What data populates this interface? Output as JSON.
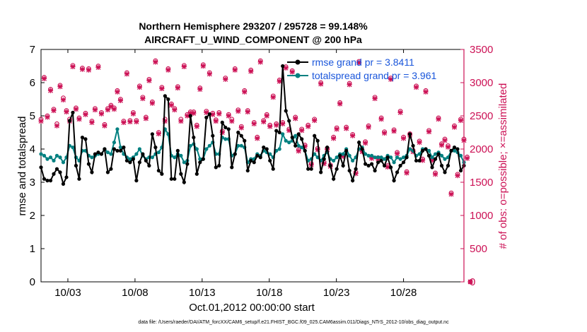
{
  "chart_data": {
    "type": "line",
    "title": "Northern Hemisphere 293207 / 295728 = 99.148%",
    "subtitle": "AIRCRAFT_U_WIND_COMPONENT @ 200 hPa",
    "xlabel": "Oct.01,2012 00:00:00 start",
    "ylabel": "rmse and totalspread",
    "y2label": "# of obs: o=possible; ×=assimilated",
    "footnote": "data file: /Users/raeder/DAI/ATM_forcXX/CAM6_setup/f.e21.FHIST_BGC.f09_025.CAM6assim.011/Diags_NTrS_2012-10/obs_diag_output.nc",
    "xlim": [
      1,
      32.5
    ],
    "xticks": [
      {
        "value": 3,
        "label": "10/03"
      },
      {
        "value": 8,
        "label": "10/08"
      },
      {
        "value": 13,
        "label": "10/13"
      },
      {
        "value": 18,
        "label": "10/18"
      },
      {
        "value": 23,
        "label": "10/23"
      },
      {
        "value": 28,
        "label": "10/28"
      }
    ],
    "ylim": [
      0,
      7
    ],
    "yticks": [
      0,
      1,
      2,
      3,
      4,
      5,
      6,
      7
    ],
    "y2lim": [
      0,
      3500
    ],
    "y2ticks": [
      0,
      500,
      1000,
      1500,
      2000,
      2500,
      3000,
      3500
    ],
    "grid": false,
    "legend_position": "top-right",
    "colors": {
      "rmse": "#000000",
      "spread": "#008080",
      "obs": "#cc1155",
      "legend_text": "#1a56db"
    },
    "series": [
      {
        "name": "rmse grand pr = 3.8411",
        "axis": "left",
        "values": [
          3.45,
          3.1,
          3.05,
          3.05,
          3.25,
          3.4,
          3.3,
          2.95,
          3.15,
          4.85,
          5.1,
          3.5,
          3.1,
          4.35,
          4.3,
          3.55,
          3.3,
          3.85,
          3.9,
          3.85,
          4.0,
          3.3,
          3.4,
          4.0,
          3.95,
          3.95,
          4.05,
          3.65,
          3.6,
          3.7,
          3.05,
          3.6,
          3.85,
          3.65,
          3.5,
          4.45,
          4.05,
          3.35,
          3.25,
          5.6,
          5.5,
          3.1,
          3.1,
          3.95,
          3.25,
          3.0,
          3.55,
          5.0,
          4.35,
          3.25,
          3.6,
          3.7,
          4.95,
          5.05,
          4.4,
          3.45,
          3.5,
          4.8,
          4.65,
          4.6,
          3.45,
          3.85,
          4.5,
          4.4,
          4.25,
          3.35,
          3.65,
          3.6,
          3.8,
          3.75,
          4.05,
          4.0,
          3.65,
          3.4,
          4.55,
          4.5,
          6.5,
          5.15,
          4.85,
          4.35,
          4.1,
          4.45,
          4.3,
          3.95,
          3.4,
          3.4,
          4.4,
          4.25,
          3.3,
          3.7,
          4.05,
          3.5,
          3.1,
          3.4,
          3.8,
          3.5,
          3.95,
          3.35,
          3.05,
          3.4,
          4.2,
          4.0,
          3.55,
          3.5,
          3.55,
          3.35,
          3.6,
          3.65,
          3.5,
          3.75,
          3.45,
          3.05,
          3.3,
          3.5,
          3.6,
          3.75,
          4.45,
          4.1,
          3.65,
          3.65,
          3.95,
          4.0,
          3.8,
          3.45,
          3.7,
          3.85,
          3.5,
          3.3,
          3.5,
          3.95,
          4.05,
          4.0,
          3.35,
          3.5
        ]
      },
      {
        "name": "totalspread grand pr = 3.961",
        "axis": "left",
        "values": [
          3.85,
          3.8,
          3.7,
          3.75,
          3.65,
          3.8,
          3.75,
          3.6,
          3.75,
          4.1,
          4.05,
          3.75,
          3.65,
          3.95,
          3.95,
          3.8,
          3.75,
          3.8,
          3.85,
          3.85,
          4.0,
          3.9,
          3.85,
          4.2,
          4.6,
          4.05,
          3.85,
          3.75,
          3.7,
          3.75,
          3.85,
          4.0,
          3.8,
          3.7,
          3.75,
          3.75,
          3.85,
          3.9,
          4.05,
          4.6,
          4.45,
          3.8,
          3.75,
          3.85,
          3.8,
          3.6,
          3.65,
          4.1,
          4.15,
          4.0,
          3.7,
          3.7,
          4.0,
          4.1,
          4.2,
          3.85,
          3.85,
          4.35,
          4.3,
          4.3,
          3.8,
          3.85,
          4.1,
          4.1,
          4.05,
          3.6,
          3.7,
          3.7,
          3.85,
          3.8,
          3.95,
          3.9,
          3.85,
          3.75,
          3.95,
          4.0,
          4.45,
          4.25,
          4.2,
          4.25,
          4.4,
          4.1,
          4.05,
          3.95,
          3.65,
          3.7,
          3.85,
          3.75,
          3.65,
          3.8,
          3.9,
          3.7,
          3.65,
          3.75,
          3.85,
          3.85,
          4.0,
          3.8,
          3.65,
          3.75,
          4.0,
          4.05,
          3.85,
          3.8,
          3.8,
          3.75,
          3.75,
          3.75,
          3.7,
          3.8,
          3.75,
          3.6,
          3.75,
          3.7,
          3.75,
          3.8,
          4.0,
          3.95,
          3.8,
          3.85,
          4.0,
          4.0,
          3.95,
          3.75,
          3.85,
          3.9,
          3.8,
          3.7,
          3.75,
          3.95,
          3.95,
          3.9,
          3.8,
          3.6
        ]
      },
      {
        "name": "possible",
        "axis": "right",
        "marker": "o",
        "values": [
          2450,
          3080,
          2500,
          2900,
          2600,
          2380,
          2960,
          2770,
          2580,
          2450,
          3260,
          2620,
          2470,
          3220,
          2540,
          3210,
          2420,
          2610,
          3250,
          2550,
          2370,
          2610,
          2660,
          2620,
          2880,
          2750,
          2420,
          3150,
          2430,
          2550,
          2430,
          2950,
          2780,
          2480,
          3050,
          2710,
          3330,
          2250,
          2930,
          2450,
          3210,
          2680,
          2610,
          2940,
          2450,
          3260,
          2520,
          2560,
          2560,
          2360,
          2920,
          3270,
          2570,
          3150,
          2540,
          2440,
          2550,
          2270,
          3070,
          2520,
          2450,
          3210,
          2590,
          2340,
          2880,
          2580,
          3190,
          2400,
          2180,
          3330,
          2430,
          2520,
          2360,
          2800,
          2380,
          3040,
          2400,
          3240,
          2300,
          3180,
          2480,
          1990,
          2300,
          2060,
          2360,
          1780,
          2450,
          2010,
          3000,
          1800,
          2010,
          1760,
          2180,
          2320,
          2700,
          1910,
          2330,
          2990,
          2220,
          1650,
          3320,
          1980,
          2110,
          2350,
          1880,
          2780,
          1870,
          2470,
          2260,
          1750,
          3070,
          2290,
          1950,
          2570,
          2180,
          1660,
          2230,
          1980,
          2950,
          2120,
          1850,
          2880,
          2280,
          1850,
          1640,
          2470,
          2080,
          2150,
          2050,
          1340,
          2350,
          1620,
          2450,
          2150,
          1880,
          0
        ]
      },
      {
        "name": "assimilated",
        "axis": "right",
        "marker": "x",
        "values": [
          2420,
          3060,
          2480,
          2880,
          2580,
          2350,
          2940,
          2740,
          2560,
          2420,
          3240,
          2600,
          2450,
          3200,
          2520,
          3190,
          2400,
          2590,
          3230,
          2530,
          2350,
          2590,
          2640,
          2600,
          2860,
          2730,
          2400,
          3130,
          2410,
          2530,
          2410,
          2930,
          2760,
          2460,
          3030,
          2690,
          3310,
          2230,
          2910,
          2420,
          3190,
          2660,
          2590,
          2920,
          2420,
          3240,
          2500,
          2540,
          2540,
          2340,
          2900,
          3250,
          2550,
          3130,
          2520,
          2420,
          2530,
          2250,
          3050,
          2500,
          2420,
          3190,
          2570,
          2320,
          2860,
          2560,
          3170,
          2380,
          2160,
          3310,
          2410,
          2500,
          2340,
          2780,
          2360,
          3020,
          2380,
          3220,
          2280,
          3160,
          2460,
          1970,
          2280,
          2040,
          2340,
          1760,
          2430,
          1990,
          2980,
          1780,
          1990,
          1740,
          2160,
          2300,
          2680,
          1890,
          2310,
          2970,
          2200,
          1630,
          3300,
          1960,
          2090,
          2330,
          1860,
          2760,
          1850,
          2450,
          2240,
          1730,
          3050,
          2270,
          1930,
          2550,
          2160,
          1640,
          2210,
          1960,
          2930,
          2100,
          1830,
          2860,
          2260,
          1830,
          1620,
          2450,
          2060,
          2130,
          2030,
          1320,
          2330,
          1600,
          2430,
          2130,
          1860,
          0
        ]
      }
    ]
  }
}
